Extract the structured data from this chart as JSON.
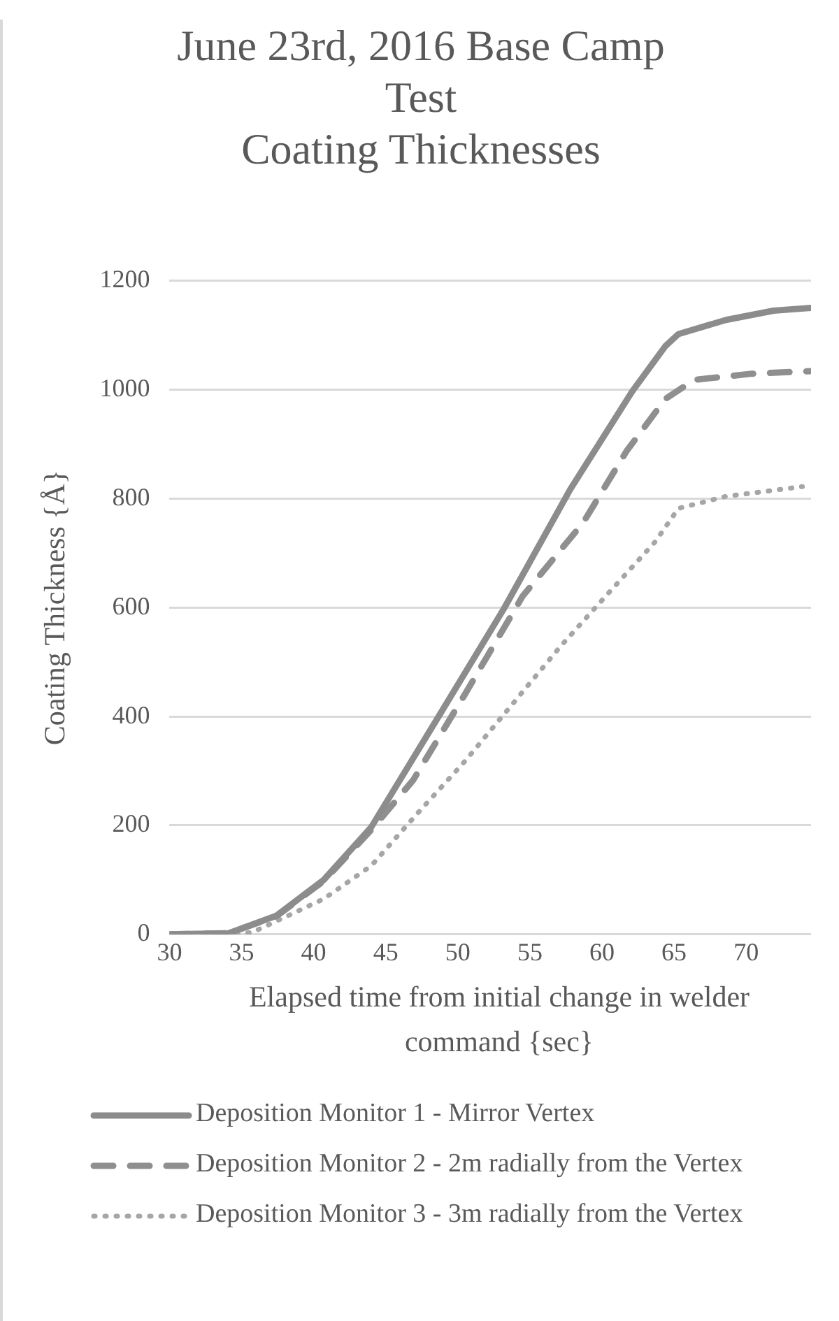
{
  "chart_data": {
    "type": "line",
    "title": "June 23rd, 2016 Base Camp Test",
    "subtitle": "Coating Thicknesses",
    "xlabel": "Elapsed time from initial change in welder command {sec}",
    "ylabel": "Coating Thickness {Å}",
    "xlim": [
      30,
      74.5
    ],
    "xticks": [
      30,
      35,
      40,
      45,
      50,
      55,
      60,
      65,
      70
    ],
    "ylim": [
      0,
      1200
    ],
    "yticks": [
      0,
      200,
      400,
      600,
      800,
      1000,
      1200
    ],
    "grid": "y",
    "legend": "bottom",
    "marker": "none",
    "series": [
      {
        "name": "Deposition Monitor 1 - Mirror Vertex",
        "color": "#8c8c8c",
        "line_style": "solid",
        "x": [
          30,
          34.1,
          37.4,
          40.7,
          44,
          48.6,
          53.2,
          57.8,
          62.1,
          64.4,
          65.3,
          68.6,
          71.9,
          74.5
        ],
        "values": [
          0,
          2,
          34,
          100,
          197,
          397,
          598,
          817,
          997,
          1080,
          1102,
          1128,
          1145,
          1150
        ]
      },
      {
        "name": "Deposition Monitor 2 - 2m radially from the Vertex",
        "color": "#8f8f8f",
        "line_style": "dashed",
        "x": [
          30,
          34.1,
          37.4,
          40.7,
          44,
          46.9,
          50.5,
          54.5,
          58.7,
          61.7,
          64.4,
          66.4,
          70.3,
          74.5
        ],
        "values": [
          0,
          2,
          33,
          98,
          192,
          283,
          441,
          621,
          756,
          887,
          983,
          1018,
          1029,
          1034
        ]
      },
      {
        "name": "Deposition Monitor 3 - 3m radially from the Vertex",
        "color": "#a6a6a6",
        "line_style": "dotted",
        "x": [
          30,
          35.7,
          40.7,
          44,
          47.2,
          50.5,
          53.8,
          57.1,
          60.4,
          63.7,
          65.3,
          68.6,
          73.9
        ],
        "values": [
          0,
          3,
          65,
          126,
          222,
          318,
          423,
          528,
          625,
          721,
          782,
          804,
          822
        ]
      }
    ]
  }
}
